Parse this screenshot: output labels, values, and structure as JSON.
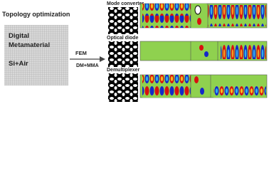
{
  "header": {
    "title": "Topology optimization"
  },
  "material": {
    "lines": [
      "Digital",
      "Metamaterial",
      "Si+Air"
    ]
  },
  "arrow": {
    "above": "FEM",
    "below": "DM+MMA"
  },
  "devices": [
    {
      "label": "Mode converter"
    },
    {
      "label": "Optical diode"
    },
    {
      "label": "Demultiplexer"
    }
  ]
}
